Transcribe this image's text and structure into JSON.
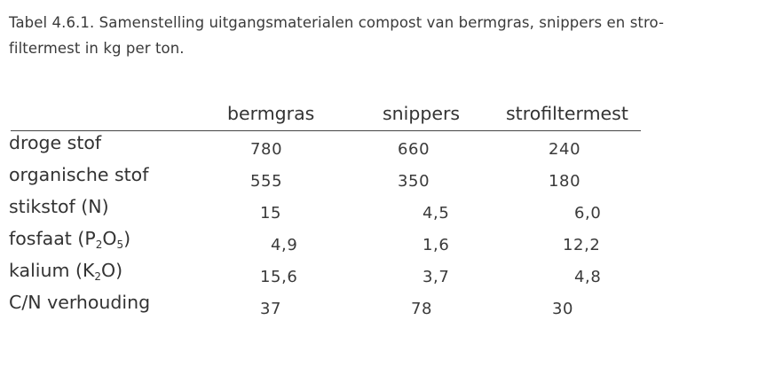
{
  "caption": {
    "line1": "Tabel 4.6.1. Samenstelling uitgangsmaterialen compost van bermgras, snippers en stro-",
    "line2": "filtermest in kg per ton."
  },
  "table": {
    "columns": [
      "bermgras",
      "snippers",
      "strofiltermest"
    ],
    "rows": [
      {
        "label": "droge stof",
        "values": [
          "780",
          "660",
          "240"
        ]
      },
      {
        "label": "organische stof",
        "values": [
          "555",
          "350",
          "180"
        ]
      },
      {
        "label": "stikstof (N)",
        "values": [
          "15",
          "4,5",
          "6,0"
        ]
      },
      {
        "label_pre": "fosfaat (P",
        "label_sub1": "2",
        "label_mid": "O",
        "label_sub2": "5",
        "label_post": ")",
        "values": [
          "4,9",
          "1,6",
          "12,2"
        ]
      },
      {
        "label_pre": "kalium (K",
        "label_sub1": "2",
        "label_post": "O)",
        "values": [
          "15,6",
          "3,7",
          "4,8"
        ]
      },
      {
        "label": "C/N verhouding",
        "values": [
          "37",
          "78",
          "30"
        ]
      }
    ]
  }
}
